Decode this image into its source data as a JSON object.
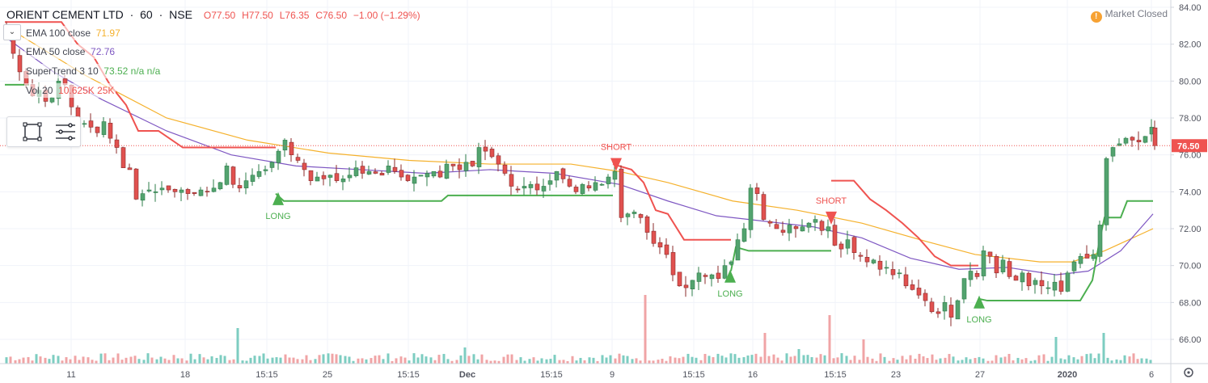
{
  "header": {
    "symbol": "ORIENT CEMENT LTD",
    "interval": "60",
    "exchange": "NSE",
    "open": "O77.50",
    "high": "H77.50",
    "low": "L76.35",
    "close": "C76.50",
    "change": "−1.00 (−1.29%)",
    "separator": "·"
  },
  "indicators": [
    {
      "name": "EMA 100 close",
      "value": "71.97",
      "color": "#f5b12c"
    },
    {
      "name": "EMA 50 close",
      "value": "72.76",
      "color": "#7e57c2"
    },
    {
      "name": "SuperTrend 3 10",
      "value": "73.52  n/a  n/a",
      "color": "#4caf50",
      "value_color_extra": "#ef5350"
    },
    {
      "name": "Vol 20",
      "value": "10.625K  25K",
      "color": "#ef5350"
    }
  ],
  "market_status": {
    "label": "Market Closed",
    "icon": "warning-icon"
  },
  "price_axis": {
    "ticks": [
      "84.00",
      "82.00",
      "80.00",
      "78.00",
      "76.00",
      "74.00",
      "72.00",
      "70.00",
      "68.00",
      "66.00"
    ],
    "last_price_label": "76.50",
    "last_price_color": "#ef5350"
  },
  "time_axis": {
    "ticks": [
      "11",
      "18",
      "15:15",
      "25",
      "15:15",
      "Dec",
      "15:15",
      "9",
      "15:15",
      "16",
      "15:15",
      "23",
      "27",
      "2020",
      "6"
    ]
  },
  "signals": [
    {
      "type": "long",
      "label": "LONG"
    },
    {
      "type": "short",
      "label": "SHORT"
    },
    {
      "type": "long",
      "label": "LONG"
    },
    {
      "type": "short",
      "label": "SHORT"
    },
    {
      "type": "long",
      "label": "LONG"
    }
  ],
  "colors": {
    "up": "#4caf50",
    "up_body": "#53a36f",
    "down": "#ef5350",
    "down_body": "#e0514f",
    "vol_up": "#7dcdc1",
    "vol_down": "#f0a4a6",
    "ema100": "#f5b12c",
    "ema50": "#7e57c2",
    "supertrend_up": "#4caf50",
    "supertrend_down": "#ef5350"
  },
  "chart_data": {
    "type": "candlestick",
    "title": "ORIENT CEMENT LTD · 60 · NSE",
    "ylim": [
      65.3,
      84.3
    ],
    "grid": true,
    "last_price": 76.5,
    "close_path": [
      [
        0,
        82.8
      ],
      [
        8,
        81.5
      ],
      [
        16,
        80.5
      ],
      [
        24,
        79.8
      ],
      [
        32,
        79.2
      ],
      [
        40,
        79.5
      ],
      [
        48,
        78.9
      ],
      [
        56,
        79.1
      ],
      [
        64,
        80.0
      ],
      [
        72,
        79.8
      ],
      [
        80,
        78.6
      ],
      [
        88,
        77.8
      ],
      [
        96,
        77.7
      ],
      [
        104,
        77.5
      ],
      [
        112,
        77.2
      ],
      [
        120,
        77.8
      ],
      [
        128,
        76.9
      ],
      [
        136,
        76.4
      ],
      [
        144,
        75.3
      ],
      [
        152,
        75.2
      ],
      [
        160,
        73.6
      ],
      [
        168,
        73.9
      ],
      [
        176,
        74.1
      ],
      [
        184,
        74.0
      ],
      [
        192,
        74.2
      ],
      [
        200,
        74.1
      ],
      [
        208,
        74.0
      ],
      [
        216,
        74.1
      ],
      [
        224,
        73.9
      ],
      [
        232,
        73.9
      ],
      [
        240,
        74.1
      ],
      [
        248,
        74.0
      ],
      [
        256,
        74.2
      ],
      [
        264,
        74.5
      ],
      [
        272,
        75.4
      ],
      [
        280,
        74.4
      ],
      [
        288,
        74.2
      ],
      [
        296,
        74.6
      ],
      [
        304,
        74.9
      ],
      [
        312,
        75.1
      ],
      [
        320,
        75.2
      ],
      [
        328,
        75.6
      ],
      [
        336,
        76.2
      ],
      [
        344,
        76.8
      ],
      [
        352,
        76.0
      ],
      [
        360,
        75.7
      ],
      [
        368,
        75.2
      ],
      [
        376,
        74.6
      ],
      [
        384,
        74.8
      ],
      [
        392,
        74.7
      ],
      [
        400,
        74.9
      ],
      [
        408,
        74.6
      ],
      [
        416,
        74.7
      ],
      [
        424,
        74.9
      ],
      [
        432,
        75.3
      ],
      [
        440,
        75.0
      ],
      [
        448,
        75.1
      ],
      [
        456,
        75.0
      ],
      [
        464,
        74.9
      ],
      [
        472,
        75.4
      ],
      [
        480,
        75.1
      ],
      [
        488,
        74.8
      ],
      [
        496,
        74.6
      ],
      [
        504,
        74.8
      ],
      [
        512,
        74.9
      ],
      [
        520,
        75.0
      ],
      [
        528,
        75.1
      ],
      [
        536,
        74.8
      ],
      [
        544,
        75.5
      ],
      [
        552,
        75.4
      ],
      [
        560,
        75.2
      ],
      [
        568,
        75.6
      ],
      [
        576,
        75.4
      ],
      [
        584,
        76.4
      ],
      [
        592,
        76.2
      ],
      [
        600,
        75.9
      ],
      [
        608,
        75.5
      ],
      [
        616,
        75.0
      ],
      [
        624,
        74.3
      ],
      [
        632,
        74.1
      ],
      [
        640,
        74.3
      ],
      [
        648,
        74.4
      ],
      [
        656,
        74.1
      ],
      [
        664,
        74.3
      ],
      [
        672,
        74.6
      ],
      [
        680,
        75.1
      ],
      [
        688,
        74.7
      ],
      [
        696,
        74.3
      ],
      [
        704,
        74.0
      ],
      [
        712,
        74.4
      ],
      [
        720,
        74.2
      ],
      [
        728,
        74.5
      ],
      [
        736,
        74.4
      ],
      [
        744,
        74.8
      ],
      [
        752,
        75.1
      ],
      [
        760,
        72.6
      ],
      [
        768,
        72.8
      ],
      [
        776,
        72.9
      ],
      [
        784,
        72.6
      ],
      [
        792,
        71.8
      ],
      [
        800,
        71.2
      ],
      [
        808,
        71.0
      ],
      [
        816,
        70.6
      ],
      [
        824,
        69.5
      ],
      [
        832,
        68.9
      ],
      [
        840,
        68.8
      ],
      [
        848,
        69.2
      ],
      [
        856,
        69.6
      ],
      [
        864,
        69.4
      ],
      [
        872,
        69.5
      ],
      [
        880,
        69.3
      ],
      [
        888,
        70.0
      ],
      [
        896,
        70.2
      ],
      [
        904,
        71.4
      ],
      [
        912,
        72.0
      ],
      [
        920,
        74.2
      ],
      [
        928,
        73.9
      ],
      [
        936,
        72.5
      ],
      [
        944,
        72.3
      ],
      [
        952,
        72.0
      ],
      [
        960,
        71.8
      ],
      [
        968,
        72.2
      ],
      [
        976,
        72.0
      ],
      [
        984,
        72.1
      ],
      [
        992,
        72.3
      ],
      [
        1000,
        72.5
      ],
      [
        1008,
        71.9
      ],
      [
        1016,
        72.1
      ],
      [
        1024,
        71.1
      ],
      [
        1032,
        70.9
      ],
      [
        1040,
        71.4
      ],
      [
        1048,
        70.7
      ],
      [
        1056,
        70.5
      ],
      [
        1064,
        70.2
      ],
      [
        1072,
        70.3
      ],
      [
        1080,
        69.8
      ],
      [
        1088,
        69.9
      ],
      [
        1096,
        69.5
      ],
      [
        1104,
        69.6
      ],
      [
        1112,
        68.9
      ],
      [
        1120,
        68.7
      ],
      [
        1128,
        68.4
      ],
      [
        1136,
        68.1
      ],
      [
        1144,
        67.5
      ],
      [
        1152,
        67.4
      ],
      [
        1160,
        68.0
      ],
      [
        1168,
        67.2
      ],
      [
        1176,
        68.1
      ],
      [
        1184,
        69.3
      ],
      [
        1192,
        69.7
      ],
      [
        1200,
        69.4
      ],
      [
        1208,
        70.8
      ],
      [
        1216,
        70.5
      ],
      [
        1224,
        69.6
      ],
      [
        1232,
        70.3
      ],
      [
        1240,
        69.4
      ],
      [
        1248,
        69.2
      ],
      [
        1256,
        69.6
      ],
      [
        1264,
        68.9
      ],
      [
        1272,
        69.2
      ],
      [
        1280,
        68.9
      ],
      [
        1288,
        68.8
      ],
      [
        1296,
        69.1
      ],
      [
        1304,
        68.6
      ],
      [
        1312,
        69.6
      ],
      [
        1320,
        70.2
      ],
      [
        1328,
        70.5
      ],
      [
        1336,
        70.4
      ],
      [
        1344,
        70.6
      ],
      [
        1352,
        72.2
      ],
      [
        1360,
        75.8
      ],
      [
        1368,
        76.4
      ],
      [
        1376,
        76.6
      ],
      [
        1384,
        76.9
      ],
      [
        1392,
        76.8
      ],
      [
        1400,
        76.7
      ],
      [
        1408,
        77.0
      ],
      [
        1416,
        77.5
      ],
      [
        1420,
        76.5
      ]
    ],
    "ema100": [
      [
        0,
        83.0
      ],
      [
        100,
        80.3
      ],
      [
        200,
        78.0
      ],
      [
        300,
        76.8
      ],
      [
        400,
        76.1
      ],
      [
        500,
        75.7
      ],
      [
        600,
        75.5
      ],
      [
        700,
        75.5
      ],
      [
        760,
        75.1
      ],
      [
        820,
        74.5
      ],
      [
        900,
        73.5
      ],
      [
        980,
        73.0
      ],
      [
        1060,
        72.3
      ],
      [
        1140,
        71.3
      ],
      [
        1200,
        70.6
      ],
      [
        1280,
        70.2
      ],
      [
        1320,
        70.2
      ],
      [
        1360,
        70.8
      ],
      [
        1420,
        72.0
      ]
    ],
    "ema50": [
      [
        0,
        82.4
      ],
      [
        60,
        80.5
      ],
      [
        120,
        79.0
      ],
      [
        200,
        77.3
      ],
      [
        280,
        76.0
      ],
      [
        360,
        75.4
      ],
      [
        440,
        75.2
      ],
      [
        520,
        75.0
      ],
      [
        600,
        75.2
      ],
      [
        680,
        75.0
      ],
      [
        760,
        74.4
      ],
      [
        820,
        73.5
      ],
      [
        880,
        72.7
      ],
      [
        940,
        72.4
      ],
      [
        1000,
        72.1
      ],
      [
        1060,
        71.5
      ],
      [
        1120,
        70.4
      ],
      [
        1180,
        69.8
      ],
      [
        1240,
        69.9
      ],
      [
        1300,
        69.5
      ],
      [
        1340,
        69.7
      ],
      [
        1380,
        70.8
      ],
      [
        1420,
        72.8
      ]
    ],
    "supertrend": [
      {
        "dir": "down",
        "points": [
          [
            0,
            83.2
          ],
          [
            70,
            83.2
          ],
          [
            90,
            82.0
          ],
          [
            110,
            81.3
          ],
          [
            130,
            79.8
          ],
          [
            150,
            78.7
          ],
          [
            165,
            77.3
          ],
          [
            190,
            77.3
          ],
          [
            220,
            76.4
          ],
          [
            335,
            76.4
          ]
        ]
      },
      {
        "dir": "up",
        "points": [
          [
            0,
            79.8
          ],
          [
            30,
            79.8
          ]
        ]
      },
      {
        "dir": "up",
        "points": [
          [
            335,
            73.9
          ],
          [
            345,
            73.5
          ],
          [
            540,
            73.5
          ],
          [
            548,
            73.8
          ],
          [
            752,
            73.8
          ]
        ]
      },
      {
        "dir": "down",
        "points": [
          [
            752,
            75.5
          ],
          [
            775,
            75.2
          ],
          [
            790,
            74.5
          ],
          [
            805,
            73.0
          ],
          [
            820,
            72.8
          ],
          [
            840,
            71.4
          ],
          [
            898,
            71.4
          ]
        ]
      },
      {
        "dir": "up",
        "points": [
          [
            898,
            69.7
          ],
          [
            904,
            71.0
          ],
          [
            920,
            70.8
          ],
          [
            1022,
            70.8
          ]
        ]
      },
      {
        "dir": "down",
        "points": [
          [
            1022,
            74.6
          ],
          [
            1050,
            74.6
          ],
          [
            1070,
            73.6
          ],
          [
            1090,
            73.0
          ],
          [
            1110,
            72.3
          ],
          [
            1130,
            71.5
          ],
          [
            1150,
            70.5
          ],
          [
            1170,
            70.0
          ],
          [
            1204,
            70.0
          ]
        ]
      },
      {
        "dir": "up",
        "points": [
          [
            1204,
            68.2
          ],
          [
            1215,
            68.1
          ],
          [
            1330,
            68.1
          ],
          [
            1345,
            69.2
          ],
          [
            1355,
            71.6
          ],
          [
            1360,
            72.6
          ],
          [
            1380,
            72.6
          ],
          [
            1388,
            73.5
          ],
          [
            1420,
            73.5
          ]
        ]
      }
    ],
    "signal_points": [
      {
        "type": "long",
        "x": 338,
        "price": 73.8
      },
      {
        "type": "short",
        "x": 756,
        "price": 75.3
      },
      {
        "type": "long",
        "x": 897,
        "price": 69.6
      },
      {
        "type": "short",
        "x": 1022,
        "price": 72.4
      },
      {
        "type": "long",
        "x": 1205,
        "price": 68.2
      }
    ],
    "volume_spikes": [
      [
        288,
        44,
        "up"
      ],
      [
        790,
        85,
        "down"
      ],
      [
        940,
        38,
        "down"
      ],
      [
        1018,
        60,
        "down"
      ],
      [
        1060,
        30,
        "down"
      ],
      [
        1144,
        48,
        "down"
      ],
      [
        1300,
        33,
        "up"
      ],
      [
        1358,
        38,
        "up"
      ],
      [
        982,
        18,
        "up"
      ],
      [
        570,
        20,
        "up"
      ]
    ]
  }
}
